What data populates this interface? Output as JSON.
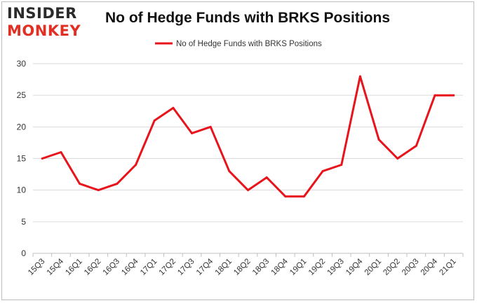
{
  "logo": {
    "line1": "INSIDER",
    "line2": "MONKEY"
  },
  "chart_data": {
    "type": "line",
    "title": "No of Hedge Funds with BRKS Positions",
    "categories": [
      "15Q3",
      "15Q4",
      "16Q1",
      "16Q2",
      "16Q3",
      "16Q4",
      "17Q1",
      "17Q2",
      "17Q3",
      "17Q4",
      "18Q1",
      "18Q2",
      "18Q3",
      "18Q4",
      "19Q1",
      "19Q2",
      "19Q3",
      "19Q4",
      "20Q1",
      "20Q2",
      "20Q3",
      "20Q4",
      "21Q1"
    ],
    "series": [
      {
        "name": "No of Hedge Funds with BRKS Positions",
        "values": [
          15,
          16,
          11,
          10,
          11,
          14,
          21,
          23,
          19,
          20,
          13,
          10,
          12,
          9,
          9,
          13,
          14,
          28,
          18,
          15,
          17,
          25,
          25
        ]
      }
    ],
    "ylim": [
      0,
      30
    ],
    "yticks": [
      0,
      5,
      10,
      15,
      20,
      25,
      30
    ],
    "grid": true,
    "legend": "top-center",
    "colors": {
      "line": "#e8141c",
      "grid": "#d9d9d9",
      "axis_text": "#333333"
    }
  }
}
